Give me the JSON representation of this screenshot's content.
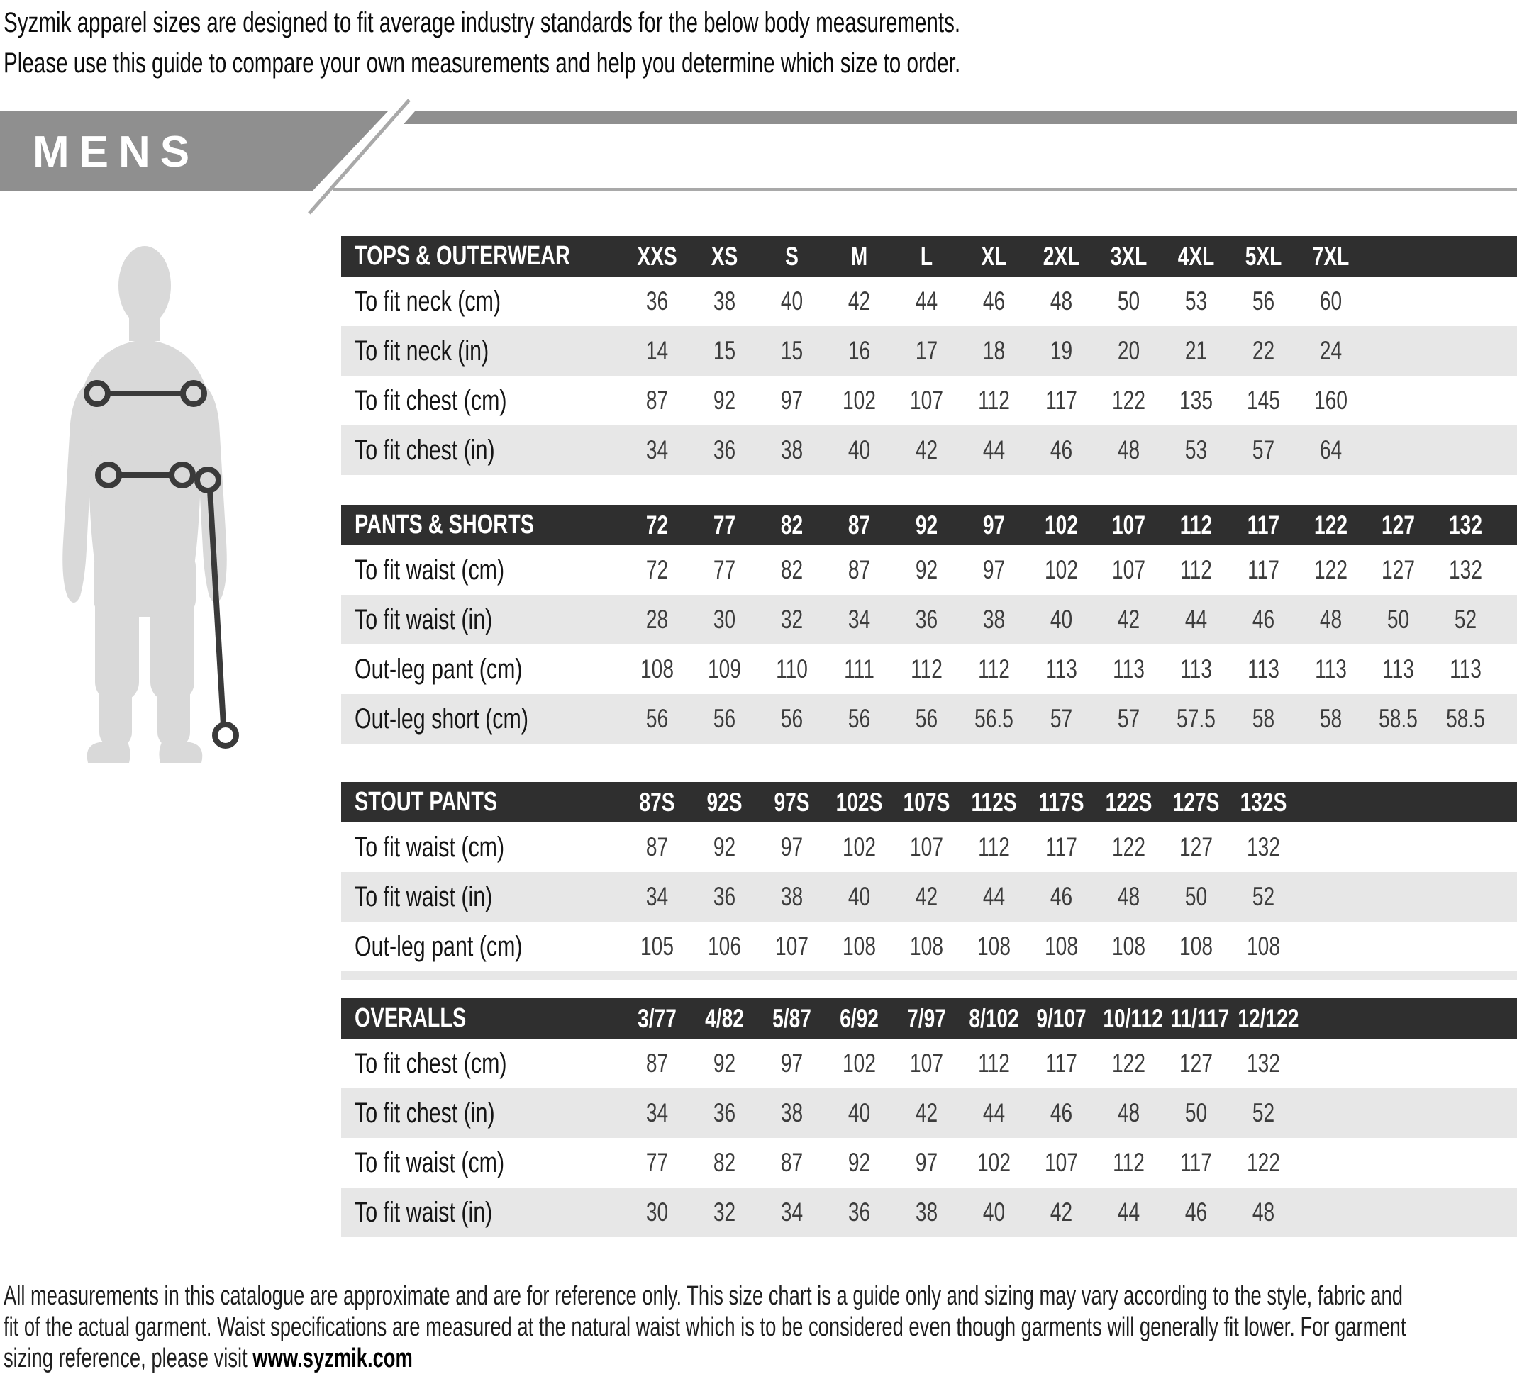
{
  "intro": {
    "line1": "Syzmik apparel sizes are designed to fit average industry standards for the below body measurements.",
    "line2": "Please use this guide to compare your own measurements and help you determine which size to order."
  },
  "section": {
    "title": "MENS"
  },
  "tables": [
    {
      "title": "TOPS & OUTERWEAR",
      "columns": [
        "XXS",
        "XS",
        "S",
        "M",
        "L",
        "XL",
        "2XL",
        "3XL",
        "4XL",
        "5XL",
        "7XL"
      ],
      "rows": [
        {
          "label": "To fit neck (cm)",
          "values": [
            "36",
            "38",
            "40",
            "42",
            "44",
            "46",
            "48",
            "50",
            "53",
            "56",
            "60"
          ]
        },
        {
          "label": "To fit neck (in)",
          "values": [
            "14",
            "15",
            "15",
            "16",
            "17",
            "18",
            "19",
            "20",
            "21",
            "22",
            "24"
          ]
        },
        {
          "label": "To fit chest (cm)",
          "values": [
            "87",
            "92",
            "97",
            "102",
            "107",
            "112",
            "117",
            "122",
            "135",
            "145",
            "160"
          ]
        },
        {
          "label": "To fit chest (in)",
          "values": [
            "34",
            "36",
            "38",
            "40",
            "42",
            "44",
            "46",
            "48",
            "53",
            "57",
            "64"
          ]
        }
      ]
    },
    {
      "title": "PANTS & SHORTS",
      "columns": [
        "72",
        "77",
        "82",
        "87",
        "92",
        "97",
        "102",
        "107",
        "112",
        "117",
        "122",
        "127",
        "132"
      ],
      "rows": [
        {
          "label": "To fit waist (cm)",
          "values": [
            "72",
            "77",
            "82",
            "87",
            "92",
            "97",
            "102",
            "107",
            "112",
            "117",
            "122",
            "127",
            "132"
          ]
        },
        {
          "label": "To fit waist (in)",
          "values": [
            "28",
            "30",
            "32",
            "34",
            "36",
            "38",
            "40",
            "42",
            "44",
            "46",
            "48",
            "50",
            "52"
          ]
        },
        {
          "label": "Out-leg pant (cm)",
          "values": [
            "108",
            "109",
            "110",
            "111",
            "112",
            "112",
            "113",
            "113",
            "113",
            "113",
            "113",
            "113",
            "113"
          ]
        },
        {
          "label": "Out-leg short (cm)",
          "values": [
            "56",
            "56",
            "56",
            "56",
            "56",
            "56.5",
            "57",
            "57",
            "57.5",
            "58",
            "58",
            "58.5",
            "58.5"
          ]
        }
      ]
    },
    {
      "title": "STOUT PANTS",
      "columns": [
        "87S",
        "92S",
        "97S",
        "102S",
        "107S",
        "112S",
        "117S",
        "122S",
        "127S",
        "132S"
      ],
      "rows": [
        {
          "label": "To fit waist (cm)",
          "values": [
            "87",
            "92",
            "97",
            "102",
            "107",
            "112",
            "117",
            "122",
            "127",
            "132"
          ]
        },
        {
          "label": "To fit waist (in)",
          "values": [
            "34",
            "36",
            "38",
            "40",
            "42",
            "44",
            "46",
            "48",
            "50",
            "52"
          ]
        },
        {
          "label": "Out-leg pant (cm)",
          "values": [
            "105",
            "106",
            "107",
            "108",
            "108",
            "108",
            "108",
            "108",
            "108",
            "108"
          ]
        }
      ]
    },
    {
      "title": "OVERALLS",
      "columns": [
        "3/77",
        "4/82",
        "5/87",
        "6/92",
        "7/97",
        "8/102",
        "9/107",
        "10/112",
        "11/117",
        "12/122"
      ],
      "rows": [
        {
          "label": "To fit chest (cm)",
          "values": [
            "87",
            "92",
            "97",
            "102",
            "107",
            "112",
            "117",
            "122",
            "127",
            "132"
          ]
        },
        {
          "label": "To fit chest (in)",
          "values": [
            "34",
            "36",
            "38",
            "40",
            "42",
            "44",
            "46",
            "48",
            "50",
            "52"
          ]
        },
        {
          "label": "To fit waist (cm)",
          "values": [
            "77",
            "82",
            "87",
            "92",
            "97",
            "102",
            "107",
            "112",
            "117",
            "122"
          ]
        },
        {
          "label": "To fit waist (in)",
          "values": [
            "30",
            "32",
            "34",
            "36",
            "38",
            "40",
            "42",
            "44",
            "46",
            "48"
          ]
        }
      ]
    }
  ],
  "footer": {
    "line1": "All measurements in this catalogue are approximate and are for reference only. This size chart is a guide only and sizing may vary according to the style, fabric and",
    "line2": "fit of the actual garment. Waist specifications are measured at the natural waist which is to be considered even though garments will generally fit lower. For garment",
    "line3_prefix": "sizing reference, please visit ",
    "website": "www.syzmik.com"
  },
  "colors": {
    "header_bg": "#2f2f2f",
    "row_alt": "#e7e7e7",
    "banner": "#8f8f8f",
    "banner_line": "#a9a9a9",
    "silhouette": "#d9d9d9",
    "measure": "#3a3a3a"
  }
}
